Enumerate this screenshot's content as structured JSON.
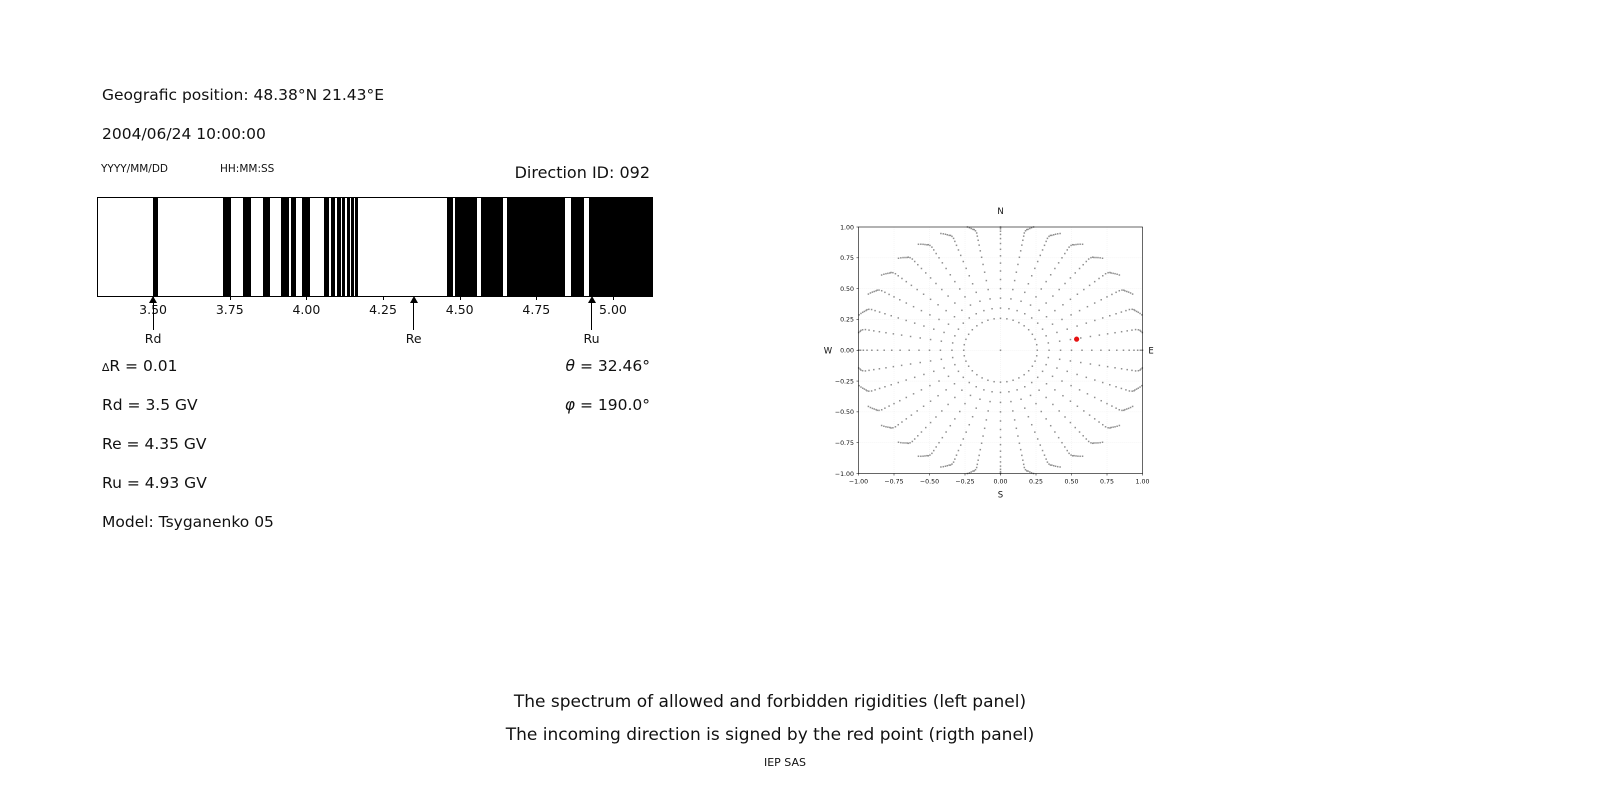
{
  "header": {
    "geo": "Geografic position: 48.38°N 21.43°E",
    "datetime": "2004/06/24 10:00:00",
    "date_format": "YYYY/MM/DD",
    "time_format": "HH:MM:SS",
    "direction_id": "Direction ID: 092"
  },
  "info": {
    "delta_sym": "∆",
    "delta_rest": "R = 0.01",
    "rd": "Rd = 3.5 GV",
    "re": "Re = 4.35 GV",
    "ru": "Ru = 4.93 GV",
    "model": "Model: Tsyganenko 05",
    "theta_sym": "θ",
    "theta_rest": " = 32.46°",
    "phi_sym": "φ",
    "phi_rest": " = 190.0°"
  },
  "caption": {
    "line1": "The spectrum of allowed and forbidden rigidities (left panel)",
    "line2": "The incoming direction is signed by the red point (rigth panel)",
    "credit": "IEP SAS"
  },
  "chart_data": [
    {
      "type": "bar",
      "subtype": "rigidity-barcode-spectrum",
      "title": "Direction ID: 092",
      "xlabel": "",
      "ylabel": "",
      "domain_gv": [
        3.317,
        5.124
      ],
      "xtick_values": [
        3.5,
        3.75,
        4.0,
        4.25,
        4.5,
        4.75,
        5.0
      ],
      "xtick_labels": [
        "3.50",
        "3.75",
        "4.00",
        "4.25",
        "4.50",
        "4.75",
        "5.00"
      ],
      "forbidden_color": "#000000",
      "allowed_color": "#ffffff",
      "forbidden_bands_gv": [
        [
          3.497,
          3.513
        ],
        [
          3.725,
          3.75
        ],
        [
          3.79,
          3.815
        ],
        [
          3.855,
          3.877
        ],
        [
          3.915,
          3.939
        ],
        [
          3.948,
          3.964
        ],
        [
          3.983,
          4.008
        ],
        [
          4.054,
          4.072
        ],
        [
          4.078,
          4.09
        ],
        [
          4.095,
          4.108
        ],
        [
          4.112,
          4.124
        ],
        [
          4.128,
          4.139
        ],
        [
          4.143,
          4.152
        ],
        [
          4.156,
          4.166
        ],
        [
          4.455,
          4.474
        ],
        [
          4.482,
          4.553
        ],
        [
          4.567,
          4.638
        ],
        [
          4.652,
          4.841
        ],
        [
          4.861,
          4.901
        ],
        [
          4.917,
          5.124
        ]
      ],
      "markers": [
        {
          "label": "Rd",
          "value_gv": 3.5
        },
        {
          "label": "Re",
          "value_gv": 4.35
        },
        {
          "label": "Ru",
          "value_gv": 4.93
        }
      ]
    },
    {
      "type": "scatter",
      "subtype": "incoming-direction-map",
      "xlim": [
        -1.0,
        1.0
      ],
      "ylim": [
        -1.0,
        1.0
      ],
      "xtick_values": [
        -1.0,
        -0.75,
        -0.5,
        -0.25,
        0.0,
        0.25,
        0.5,
        0.75,
        1.0
      ],
      "xtick_labels": [
        "−1.00",
        "−0.75",
        "−0.50",
        "−0.25",
        "0.00",
        "0.25",
        "0.50",
        "0.75",
        "1.00"
      ],
      "ytick_values": [
        1.0,
        0.75,
        0.5,
        0.25,
        0.0,
        -0.25,
        -0.5,
        -0.75,
        -1.0
      ],
      "ytick_labels": [
        "1.00",
        "0.75",
        "0.50",
        "0.25",
        "0.00",
        "−0.25",
        "−0.50",
        "−0.75",
        "−1.00"
      ],
      "compass": {
        "north": "N",
        "south": "S",
        "west": "W",
        "east": "E"
      },
      "grid": true,
      "grid_color": "#e8e8e8",
      "dot_color": "#8f8f8f",
      "rays": {
        "azimuth_start_deg": 0,
        "azimuth_step_deg": 10,
        "azimuth_count": 36,
        "radii": [
          0.259,
          0.342,
          0.423,
          0.5,
          0.574,
          0.643,
          0.707,
          0.766,
          0.819,
          0.866,
          0.906,
          0.94,
          0.966,
          0.985,
          0.996,
          1.0,
          1.009,
          1.018,
          1.027,
          1.036
        ],
        "tip_drift_deg": [
          0,
          0,
          0,
          0,
          0,
          0,
          0,
          0,
          0,
          0,
          0,
          0,
          0,
          0.3,
          0.7,
          1.2,
          1.8,
          2.4,
          3.1,
          3.9
        ],
        "clip_limit": 1.004
      },
      "center_dot": {
        "x": 0,
        "y": 0
      },
      "red_point": {
        "x": 0.536,
        "y": 0.09,
        "color": "#e51212",
        "radius_px": 5.2
      }
    }
  ]
}
